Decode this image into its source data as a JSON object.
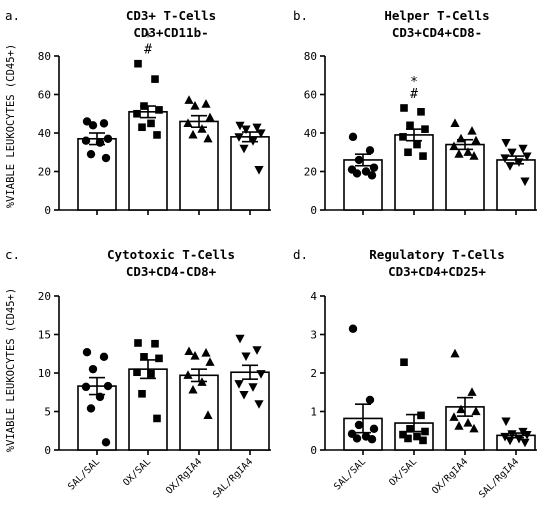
{
  "figure": {
    "ylabel": "%VIABLE LEUKOCYTES (CD45+)"
  },
  "chart_data": [
    {
      "letter": "a.",
      "type": "bar",
      "title": "CD3+ T-Cells",
      "subtitle": "CD3+CD11b-",
      "categories": [
        "SAL/SAL",
        "OX/SAL",
        "OX/RgIA4",
        "SAL/RgIA4"
      ],
      "marker_shapes": [
        "circle",
        "square",
        "triangle",
        "triangle-down"
      ],
      "ylim": [
        0,
        80
      ],
      "yticks": [
        "0",
        "20",
        "40",
        "60",
        "80"
      ],
      "values": [
        37,
        51,
        46,
        38
      ],
      "errors": [
        3,
        3,
        3,
        2.5
      ],
      "points": [
        [
          46,
          45,
          44,
          37,
          36,
          35,
          29,
          27
        ],
        [
          76,
          68,
          54,
          52,
          50,
          45,
          43,
          39
        ],
        [
          57,
          55,
          54,
          48,
          45,
          42,
          39,
          37
        ],
        [
          44,
          43,
          42,
          40,
          38,
          36,
          32,
          21
        ]
      ],
      "annotations": [
        {
          "category": "OX/SAL",
          "lines": [
            "*",
            "#"
          ]
        }
      ]
    },
    {
      "letter": "b.",
      "type": "bar",
      "title": "Helper T-Cells",
      "subtitle": "CD3+CD4+CD8-",
      "categories": [
        "SAL/SAL",
        "OX/SAL",
        "OX/RgIA4",
        "SAL/RgIA4"
      ],
      "marker_shapes": [
        "circle",
        "square",
        "triangle",
        "triangle-down"
      ],
      "ylim": [
        0,
        80
      ],
      "yticks": [
        "0",
        "20",
        "40",
        "60",
        "80"
      ],
      "values": [
        26,
        39,
        34,
        26
      ],
      "errors": [
        3,
        3,
        2.5,
        2
      ],
      "points": [
        [
          38,
          31,
          26,
          22,
          21,
          20,
          19,
          18
        ],
        [
          53,
          51,
          44,
          42,
          38,
          34,
          30,
          28
        ],
        [
          45,
          41,
          37,
          36,
          33,
          30,
          29,
          28
        ],
        [
          35,
          32,
          30,
          28,
          27,
          25,
          23,
          15
        ]
      ],
      "annotations": [
        {
          "category": "OX/SAL",
          "lines": [
            "*",
            "#"
          ]
        }
      ]
    },
    {
      "letter": "c.",
      "type": "bar",
      "title": "Cytotoxic T-Cells",
      "subtitle": "CD3+CD4-CD8+",
      "categories": [
        "SAL/SAL",
        "OX/SAL",
        "OX/RgIA4",
        "SAL/RgIA4"
      ],
      "marker_shapes": [
        "circle",
        "square",
        "triangle",
        "triangle-down"
      ],
      "ylim": [
        0,
        20
      ],
      "yticks": [
        "0",
        "5",
        "10",
        "15",
        "20"
      ],
      "values": [
        8.3,
        10.5,
        9.7,
        10.1
      ],
      "errors": [
        1.1,
        1.2,
        0.8,
        0.9
      ],
      "points": [
        [
          12.7,
          12.1,
          10.5,
          8.3,
          8.2,
          6.9,
          5.4,
          1.0
        ],
        [
          13.9,
          13.8,
          12.1,
          11.9,
          10.1,
          9.9,
          7.3,
          4.1
        ],
        [
          12.8,
          12.6,
          12.2,
          11.4,
          9.7,
          8.8,
          7.8,
          4.5
        ],
        [
          14.5,
          13.0,
          12.2,
          9.9,
          8.6,
          8.2,
          7.2,
          6.0
        ]
      ],
      "annotations": []
    },
    {
      "letter": "d.",
      "type": "bar",
      "title": "Regulatory T-Cells",
      "subtitle": "CD3+CD4+CD25+",
      "categories": [
        "SAL/SAL",
        "OX/SAL",
        "OX/RgIA4",
        "SAL/RgIA4"
      ],
      "marker_shapes": [
        "circle",
        "square",
        "triangle",
        "triangle-down"
      ],
      "ylim": [
        0,
        4
      ],
      "yticks": [
        "0",
        "1",
        "2",
        "3",
        "4"
      ],
      "values": [
        0.82,
        0.7,
        1.12,
        0.38
      ],
      "errors": [
        0.37,
        0.22,
        0.24,
        0.06
      ],
      "points": [
        [
          3.15,
          1.3,
          0.65,
          0.55,
          0.42,
          0.35,
          0.3,
          0.28
        ],
        [
          2.28,
          0.9,
          0.55,
          0.48,
          0.4,
          0.35,
          0.3,
          0.25
        ],
        [
          2.5,
          1.5,
          1.05,
          1.0,
          0.85,
          0.7,
          0.62,
          0.55
        ],
        [
          0.75,
          0.48,
          0.42,
          0.4,
          0.35,
          0.3,
          0.25,
          0.2
        ]
      ],
      "annotations": []
    }
  ]
}
